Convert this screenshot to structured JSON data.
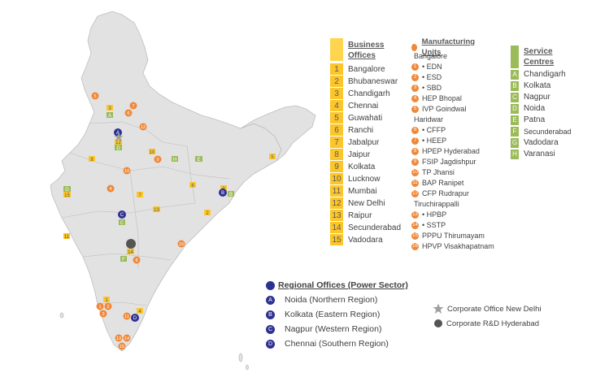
{
  "business_offices": {
    "title_line1": "Business",
    "title_line2": "Offices",
    "color": "#fcc62a",
    "items": [
      {
        "num": "1",
        "name": "Bangalore"
      },
      {
        "num": "2",
        "name": "Bhubaneswar"
      },
      {
        "num": "3",
        "name": "Chandigarh"
      },
      {
        "num": "4",
        "name": "Chennai"
      },
      {
        "num": "5",
        "name": "Guwahati"
      },
      {
        "num": "6",
        "name": "Ranchi"
      },
      {
        "num": "7",
        "name": "Jabalpur"
      },
      {
        "num": "8",
        "name": "Jaipur"
      },
      {
        "num": "9",
        "name": "Kolkata"
      },
      {
        "num": "10",
        "name": "Lucknow"
      },
      {
        "num": "11",
        "name": "Mumbai"
      },
      {
        "num": "12",
        "name": "New Delhi"
      },
      {
        "num": "13",
        "name": "Raipur"
      },
      {
        "num": "14",
        "name": "Secunderabad"
      },
      {
        "num": "15",
        "name": "Vadodara"
      }
    ]
  },
  "manufacturing_units": {
    "title": "Manufacturing Units",
    "color": "#f0883a",
    "rows": [
      {
        "num": "",
        "text": "Bangalore"
      },
      {
        "num": "1",
        "text": "•  EDN"
      },
      {
        "num": "2",
        "text": "•  ESD"
      },
      {
        "num": "3",
        "text": "•  SBD"
      },
      {
        "num": "4",
        "text": "HEP Bhopal"
      },
      {
        "num": "5",
        "text": "IVP Goindwal"
      },
      {
        "num": "",
        "text": "Haridwar"
      },
      {
        "num": "6",
        "text": "•  CFFP"
      },
      {
        "num": "7",
        "text": "•  HEEP"
      },
      {
        "num": "8",
        "text": "HPEP Hyderabad"
      },
      {
        "num": "9",
        "text": "FSIP Jagdishpur"
      },
      {
        "num": "10",
        "text": "TP Jhansi"
      },
      {
        "num": "11",
        "text": "BAP Ranipet"
      },
      {
        "num": "12",
        "text": "CFP Rudrapur"
      },
      {
        "num": "",
        "text": "Tiruchirappalli"
      },
      {
        "num": "13",
        "text": "•  HPBP"
      },
      {
        "num": "14",
        "text": "•  SSTP"
      },
      {
        "num": "15",
        "text": "PPPU Thirumayam"
      },
      {
        "num": "16",
        "text": "HPVP Visakhapatnam"
      }
    ]
  },
  "service_centres": {
    "title_line1": "Service",
    "title_line2": "Centres",
    "color": "#9bbb59",
    "items": [
      {
        "letter": "A",
        "name": "Chandigarh"
      },
      {
        "letter": "B",
        "name": "Kolkata"
      },
      {
        "letter": "C",
        "name": "Nagpur"
      },
      {
        "letter": "D",
        "name": "Noida"
      },
      {
        "letter": "E",
        "name": "Patna"
      },
      {
        "letter": "F",
        "name": "Secunderabad"
      },
      {
        "letter": "G",
        "name": "Vadodara"
      },
      {
        "letter": "H",
        "name": "Varanasi"
      }
    ]
  },
  "regional_offices": {
    "title": "Regional Offices (Power Sector)",
    "color": "#2e3192",
    "items": [
      {
        "letter": "A",
        "name": "Noida (Northern Region)"
      },
      {
        "letter": "B",
        "name": "Kolkata (Eastern Region)"
      },
      {
        "letter": "C",
        "name": "Nagpur (Western Region)"
      },
      {
        "letter": "D",
        "name": "Chennai (Southern Region)"
      }
    ]
  },
  "corporate": {
    "office_label": "Corporate Office New Delhi",
    "office_icon": "star-icon",
    "rd_label": "Corporate R&D Hyderabad",
    "rd_icon": "dark-circle-icon"
  },
  "map_markers": {
    "business": [
      "1",
      "2",
      "3",
      "4",
      "5",
      "6",
      "7",
      "8",
      "9",
      "10",
      "11",
      "12",
      "13",
      "14",
      "15"
    ],
    "manufacturing": [
      "1",
      "2",
      "3",
      "4",
      "5",
      "6",
      "7",
      "8",
      "9",
      "10",
      "11",
      "12",
      "13",
      "14",
      "15",
      "16"
    ],
    "service": [
      "A",
      "B",
      "C",
      "D",
      "E",
      "F",
      "G",
      "H"
    ],
    "regional": [
      "A",
      "B",
      "C",
      "D"
    ]
  }
}
